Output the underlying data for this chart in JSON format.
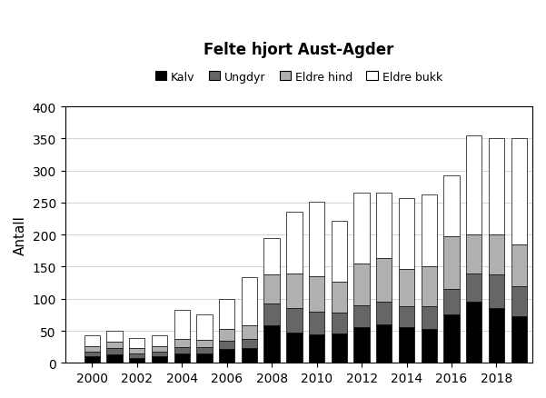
{
  "title": "Felte hjort Aust-Agder",
  "ylabel": "Antall",
  "years": [
    2000,
    2001,
    2002,
    2003,
    2004,
    2005,
    2006,
    2007,
    2008,
    2009,
    2010,
    2011,
    2012,
    2013,
    2014,
    2015,
    2016,
    2017,
    2018,
    2019
  ],
  "kalv": [
    10,
    13,
    8,
    10,
    14,
    14,
    22,
    23,
    58,
    47,
    45,
    46,
    55,
    60,
    55,
    53,
    75,
    95,
    85,
    72
  ],
  "ungdyr": [
    8,
    10,
    7,
    8,
    10,
    10,
    13,
    14,
    35,
    38,
    35,
    32,
    35,
    35,
    33,
    35,
    40,
    45,
    53,
    48
  ],
  "eldre_hind": [
    8,
    10,
    8,
    8,
    13,
    12,
    18,
    21,
    45,
    55,
    55,
    48,
    65,
    68,
    58,
    62,
    82,
    60,
    62,
    65
  ],
  "eldre_bukk": [
    17,
    17,
    15,
    17,
    45,
    40,
    47,
    75,
    57,
    95,
    116,
    96,
    110,
    102,
    111,
    113,
    95,
    155,
    150,
    165
  ],
  "colors": {
    "kalv": "#000000",
    "ungdyr": "#666666",
    "eldre_hind": "#b0b0b0",
    "eldre_bukk": "#ffffff"
  },
  "legend_labels": [
    "Kalv",
    "Ungdyr",
    "Eldre hind",
    "Eldre bukk"
  ],
  "ylim": [
    0,
    400
  ],
  "yticks": [
    0,
    50,
    100,
    150,
    200,
    250,
    300,
    350,
    400
  ],
  "xtick_labels": [
    "2000",
    "2002",
    "2004",
    "2006",
    "2008",
    "2010",
    "2012",
    "2014",
    "2016",
    "2018"
  ],
  "xtick_positions": [
    2000,
    2002,
    2004,
    2006,
    2008,
    2010,
    2012,
    2014,
    2016,
    2018
  ],
  "xlim": [
    1998.8,
    2019.6
  ]
}
